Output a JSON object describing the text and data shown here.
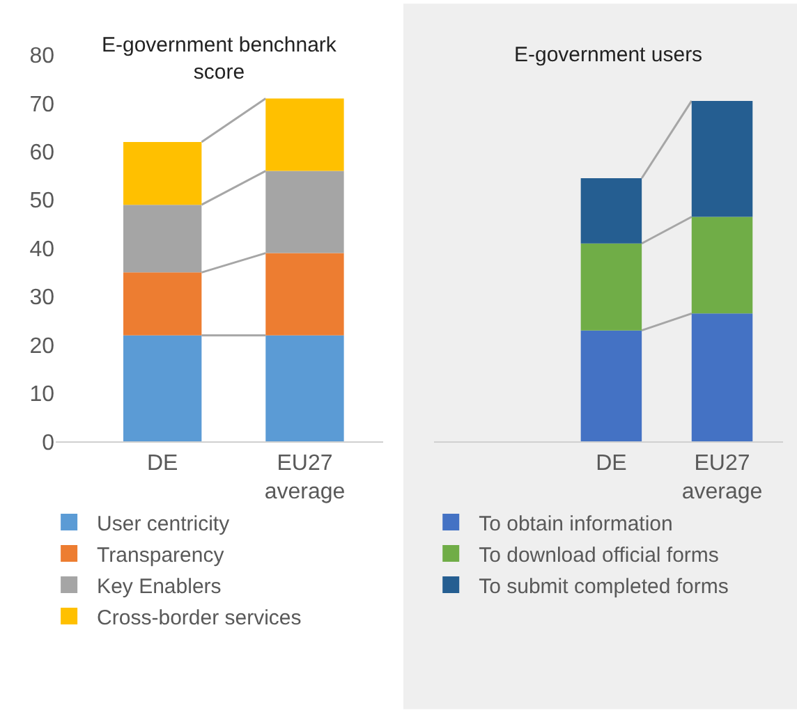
{
  "chart_data": [
    {
      "type": "bar",
      "stacked": true,
      "title": "E-government benchnark score",
      "categories": [
        "DE",
        "EU27 average"
      ],
      "ylim": [
        0,
        80
      ],
      "yticks": [
        0,
        10,
        20,
        30,
        40,
        50,
        60,
        70,
        80
      ],
      "legend": "bottom",
      "grid": false,
      "series": [
        {
          "name": "User centricity",
          "color": "#5b9bd5",
          "values": [
            22,
            22
          ]
        },
        {
          "name": "Transparency",
          "color": "#ed7d31",
          "values": [
            13,
            17
          ]
        },
        {
          "name": "Key Enablers",
          "color": "#a5a5a5",
          "values": [
            14,
            17
          ]
        },
        {
          "name": "Cross-border services",
          "color": "#ffc000",
          "values": [
            13,
            15
          ]
        }
      ]
    },
    {
      "type": "bar",
      "stacked": true,
      "title": "E-government users",
      "categories": [
        "DE",
        "EU27 average"
      ],
      "ylim": [
        0,
        80
      ],
      "yticks": [
        0,
        10,
        20,
        30,
        40,
        50,
        60,
        70,
        80
      ],
      "tick_labels": "x",
      "legend": "bottom",
      "grid": false,
      "series": [
        {
          "name": "To obtain information",
          "color": "#4472c4",
          "values": [
            23,
            26.5
          ]
        },
        {
          "name": "To download official forms",
          "color": "#70ad47",
          "values": [
            18,
            20
          ]
        },
        {
          "name": "To submit completed forms",
          "color": "#255e91",
          "values": [
            13.5,
            24
          ]
        }
      ]
    }
  ]
}
